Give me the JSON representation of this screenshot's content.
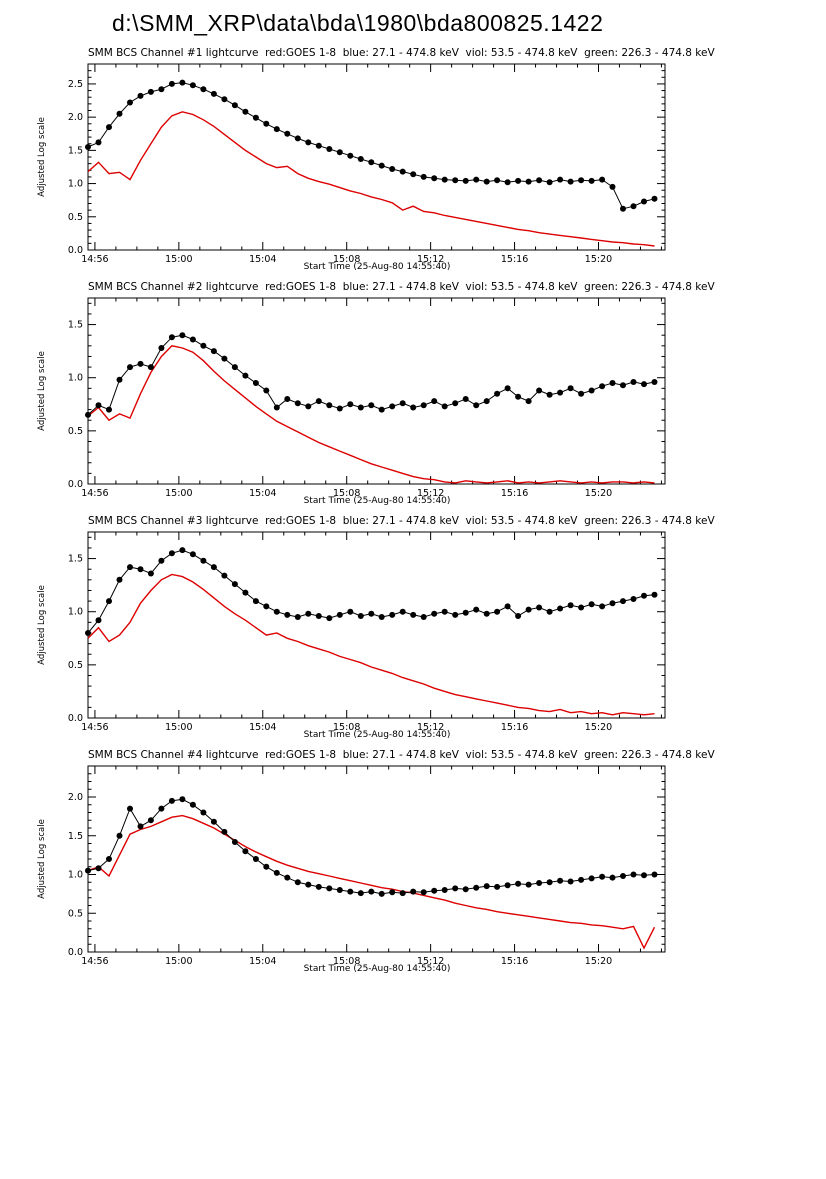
{
  "page": {
    "title": "d:\\SMM_XRP\\data\\bda\\1980\\bda800825.1422"
  },
  "colors": {
    "bcs_black": "#000000",
    "goes_red": "#dd0000",
    "background": "#ffffff"
  },
  "chart_data": [
    {
      "type": "line",
      "title": "SMM BCS Channel #1 lightcurve  red:GOES 1-8  blue: 27.1 - 474.8 keV  viol: 53.5 - 474.8 keV  green: 226.3 - 474.8 keV",
      "xlabel": "Start Time (25-Aug-80 14:55:40)",
      "ylabel": "Adjusted Log scale",
      "xlim": [
        0,
        27.5
      ],
      "ylim": [
        0,
        2.8
      ],
      "yticks": [
        0.0,
        0.5,
        1.0,
        1.5,
        2.0,
        2.5
      ],
      "x_ticks": [
        {
          "t": 0.33,
          "label": "14:56"
        },
        {
          "t": 4.33,
          "label": "15:00"
        },
        {
          "t": 8.33,
          "label": "15:04"
        },
        {
          "t": 12.33,
          "label": "15:08"
        },
        {
          "t": 16.33,
          "label": "15:12"
        },
        {
          "t": 20.33,
          "label": "15:16"
        },
        {
          "t": 24.33,
          "label": "15:20"
        }
      ],
      "x_start_min": 0,
      "x_step_min": 0.5,
      "series": [
        {
          "name": "SMM BCS Channel #1 (black, circle markers)",
          "color": "#000000",
          "marker": "circle",
          "values": [
            1.55,
            1.62,
            1.85,
            2.05,
            2.22,
            2.32,
            2.38,
            2.42,
            2.5,
            2.52,
            2.48,
            2.42,
            2.35,
            2.27,
            2.18,
            2.08,
            1.99,
            1.9,
            1.82,
            1.75,
            1.68,
            1.62,
            1.57,
            1.52,
            1.47,
            1.42,
            1.37,
            1.32,
            1.27,
            1.22,
            1.18,
            1.14,
            1.1,
            1.08,
            1.06,
            1.05,
            1.04,
            1.06,
            1.03,
            1.05,
            1.02,
            1.04,
            1.03,
            1.05,
            1.02,
            1.06,
            1.03,
            1.05,
            1.04,
            1.06,
            0.95,
            0.62,
            0.66,
            0.73,
            0.77
          ]
        },
        {
          "name": "GOES 1-8 (red)",
          "color": "#dd0000",
          "marker": "none",
          "values": [
            1.18,
            1.32,
            1.15,
            1.17,
            1.06,
            1.35,
            1.6,
            1.85,
            2.02,
            2.08,
            2.04,
            1.96,
            1.86,
            1.74,
            1.62,
            1.5,
            1.4,
            1.3,
            1.24,
            1.26,
            1.15,
            1.08,
            1.03,
            0.99,
            0.94,
            0.89,
            0.85,
            0.8,
            0.76,
            0.71,
            0.6,
            0.66,
            0.58,
            0.56,
            0.52,
            0.49,
            0.46,
            0.43,
            0.4,
            0.37,
            0.34,
            0.31,
            0.29,
            0.26,
            0.24,
            0.22,
            0.2,
            0.18,
            0.16,
            0.14,
            0.12,
            0.11,
            0.09,
            0.08,
            0.06
          ]
        }
      ]
    },
    {
      "type": "line",
      "title": "SMM BCS Channel #2 lightcurve  red:GOES 1-8  blue: 27.1 - 474.8 keV  viol: 53.5 - 474.8 keV  green: 226.3 - 474.8 keV",
      "xlabel": "Start Time (25-Aug-80 14:55:40)",
      "ylabel": "Adjusted Log scale",
      "xlim": [
        0,
        27.5
      ],
      "ylim": [
        0,
        1.75
      ],
      "yticks": [
        0.0,
        0.5,
        1.0,
        1.5
      ],
      "x_ticks": [
        {
          "t": 0.33,
          "label": "14:56"
        },
        {
          "t": 4.33,
          "label": "15:00"
        },
        {
          "t": 8.33,
          "label": "15:04"
        },
        {
          "t": 12.33,
          "label": "15:08"
        },
        {
          "t": 16.33,
          "label": "15:12"
        },
        {
          "t": 20.33,
          "label": "15:16"
        },
        {
          "t": 24.33,
          "label": "15:20"
        }
      ],
      "x_start_min": 0,
      "x_step_min": 0.5,
      "series": [
        {
          "name": "SMM BCS Channel #2 (black, circle markers)",
          "color": "#000000",
          "marker": "circle",
          "values": [
            0.65,
            0.74,
            0.7,
            0.98,
            1.1,
            1.13,
            1.1,
            1.28,
            1.38,
            1.4,
            1.36,
            1.3,
            1.25,
            1.18,
            1.1,
            1.02,
            0.95,
            0.88,
            0.72,
            0.8,
            0.76,
            0.73,
            0.78,
            0.74,
            0.71,
            0.75,
            0.72,
            0.74,
            0.7,
            0.73,
            0.76,
            0.72,
            0.74,
            0.78,
            0.73,
            0.76,
            0.8,
            0.74,
            0.78,
            0.85,
            0.9,
            0.82,
            0.78,
            0.88,
            0.84,
            0.86,
            0.9,
            0.85,
            0.88,
            0.92,
            0.95,
            0.93,
            0.96,
            0.94,
            0.96
          ]
        },
        {
          "name": "GOES 1-8 (red)",
          "color": "#dd0000",
          "marker": "none",
          "values": [
            0.64,
            0.72,
            0.6,
            0.66,
            0.62,
            0.85,
            1.05,
            1.2,
            1.3,
            1.28,
            1.24,
            1.16,
            1.06,
            0.97,
            0.89,
            0.81,
            0.73,
            0.66,
            0.59,
            0.54,
            0.49,
            0.44,
            0.39,
            0.35,
            0.31,
            0.27,
            0.23,
            0.19,
            0.16,
            0.13,
            0.1,
            0.07,
            0.05,
            0.04,
            0.02,
            0.01,
            0.03,
            0.02,
            0.01,
            0.02,
            0.03,
            0.01,
            0.02,
            0.01,
            0.02,
            0.03,
            0.02,
            0.01,
            0.02,
            0.01,
            0.02,
            0.02,
            0.01,
            0.02,
            0.01
          ]
        }
      ]
    },
    {
      "type": "line",
      "title": "SMM BCS Channel #3 lightcurve  red:GOES 1-8  blue: 27.1 - 474.8 keV  viol: 53.5 - 474.8 keV  green: 226.3 - 474.8 keV",
      "xlabel": "Start Time (25-Aug-80 14:55:40)",
      "ylabel": "Adjusted Log scale",
      "xlim": [
        0,
        27.5
      ],
      "ylim": [
        0,
        1.75
      ],
      "yticks": [
        0.0,
        0.5,
        1.0,
        1.5
      ],
      "x_ticks": [
        {
          "t": 0.33,
          "label": "14:56"
        },
        {
          "t": 4.33,
          "label": "15:00"
        },
        {
          "t": 8.33,
          "label": "15:04"
        },
        {
          "t": 12.33,
          "label": "15:08"
        },
        {
          "t": 16.33,
          "label": "15:12"
        },
        {
          "t": 20.33,
          "label": "15:16"
        },
        {
          "t": 24.33,
          "label": "15:20"
        }
      ],
      "x_start_min": 0,
      "x_step_min": 0.5,
      "series": [
        {
          "name": "SMM BCS Channel #3 (black, circle markers)",
          "color": "#000000",
          "marker": "circle",
          "values": [
            0.8,
            0.92,
            1.1,
            1.3,
            1.42,
            1.4,
            1.36,
            1.48,
            1.55,
            1.58,
            1.54,
            1.48,
            1.42,
            1.34,
            1.26,
            1.18,
            1.1,
            1.05,
            1.0,
            0.97,
            0.95,
            0.98,
            0.96,
            0.94,
            0.97,
            1.0,
            0.96,
            0.98,
            0.95,
            0.97,
            1.0,
            0.97,
            0.95,
            0.98,
            1.0,
            0.97,
            0.99,
            1.02,
            0.98,
            1.0,
            1.05,
            0.96,
            1.02,
            1.04,
            1.0,
            1.03,
            1.06,
            1.04,
            1.07,
            1.05,
            1.08,
            1.1,
            1.12,
            1.15,
            1.16
          ]
        },
        {
          "name": "GOES 1-8 (red)",
          "color": "#dd0000",
          "marker": "none",
          "values": [
            0.75,
            0.85,
            0.72,
            0.78,
            0.9,
            1.08,
            1.2,
            1.3,
            1.35,
            1.33,
            1.28,
            1.21,
            1.13,
            1.05,
            0.98,
            0.92,
            0.85,
            0.78,
            0.8,
            0.75,
            0.72,
            0.68,
            0.65,
            0.62,
            0.58,
            0.55,
            0.52,
            0.48,
            0.45,
            0.42,
            0.38,
            0.35,
            0.32,
            0.28,
            0.25,
            0.22,
            0.2,
            0.18,
            0.16,
            0.14,
            0.12,
            0.1,
            0.09,
            0.07,
            0.06,
            0.08,
            0.05,
            0.06,
            0.04,
            0.05,
            0.03,
            0.05,
            0.04,
            0.03,
            0.04
          ]
        }
      ]
    },
    {
      "type": "line",
      "title": "SMM BCS Channel #4 lightcurve  red:GOES 1-8  blue: 27.1 - 474.8 keV  viol: 53.5 - 474.8 keV  green: 226.3 - 474.8 keV",
      "xlabel": "Start Time (25-Aug-80 14:55:40)",
      "ylabel": "Adjusted Log scale",
      "xlim": [
        0,
        27.5
      ],
      "ylim": [
        0,
        2.4
      ],
      "yticks": [
        0.0,
        0.5,
        1.0,
        1.5,
        2.0
      ],
      "x_ticks": [
        {
          "t": 0.33,
          "label": "14:56"
        },
        {
          "t": 4.33,
          "label": "15:00"
        },
        {
          "t": 8.33,
          "label": "15:04"
        },
        {
          "t": 12.33,
          "label": "15:08"
        },
        {
          "t": 16.33,
          "label": "15:12"
        },
        {
          "t": 20.33,
          "label": "15:16"
        },
        {
          "t": 24.33,
          "label": "15:20"
        }
      ],
      "x_start_min": 0,
      "x_step_min": 0.5,
      "series": [
        {
          "name": "SMM BCS Channel #4 (black, circle markers)",
          "color": "#000000",
          "marker": "circle",
          "values": [
            1.05,
            1.08,
            1.2,
            1.5,
            1.85,
            1.62,
            1.7,
            1.85,
            1.95,
            1.97,
            1.9,
            1.8,
            1.68,
            1.55,
            1.42,
            1.3,
            1.2,
            1.1,
            1.02,
            0.96,
            0.9,
            0.87,
            0.84,
            0.82,
            0.8,
            0.78,
            0.76,
            0.78,
            0.75,
            0.77,
            0.76,
            0.78,
            0.77,
            0.79,
            0.8,
            0.82,
            0.81,
            0.83,
            0.85,
            0.84,
            0.86,
            0.88,
            0.87,
            0.89,
            0.9,
            0.92,
            0.91,
            0.93,
            0.95,
            0.97,
            0.96,
            0.98,
            1.0,
            0.99,
            1.0
          ]
        },
        {
          "name": "GOES 1-8 (red)",
          "color": "#dd0000",
          "marker": "none",
          "values": [
            1.05,
            1.1,
            0.98,
            1.25,
            1.52,
            1.58,
            1.62,
            1.68,
            1.74,
            1.76,
            1.72,
            1.66,
            1.6,
            1.52,
            1.44,
            1.36,
            1.29,
            1.23,
            1.17,
            1.12,
            1.08,
            1.04,
            1.01,
            0.98,
            0.95,
            0.92,
            0.89,
            0.86,
            0.83,
            0.81,
            0.78,
            0.76,
            0.73,
            0.7,
            0.67,
            0.63,
            0.6,
            0.57,
            0.55,
            0.52,
            0.5,
            0.48,
            0.46,
            0.44,
            0.42,
            0.4,
            0.38,
            0.37,
            0.35,
            0.34,
            0.32,
            0.3,
            0.33,
            0.05,
            0.32
          ]
        }
      ]
    }
  ]
}
